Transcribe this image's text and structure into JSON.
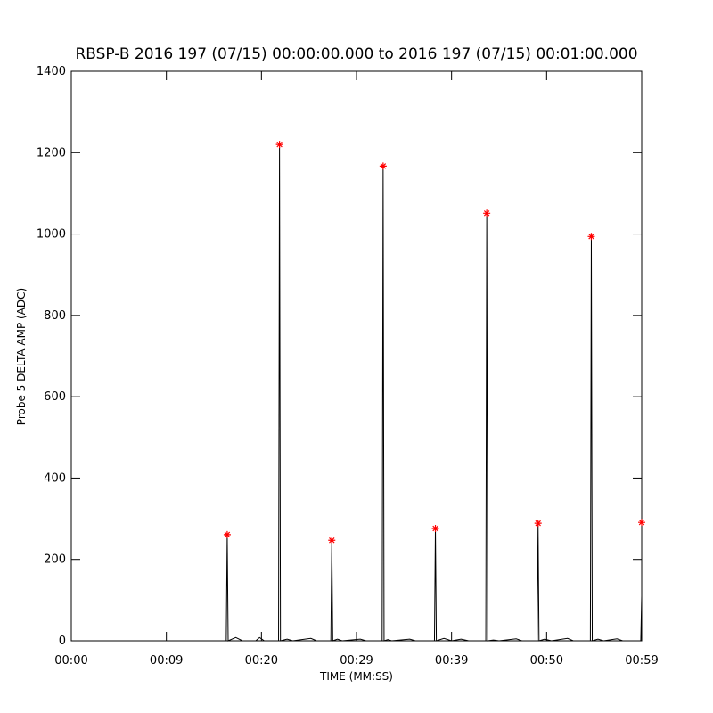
{
  "chart_data": {
    "type": "line",
    "title": "RBSP-B 2016 197 (07/15) 00:00:00.000 to 2016 197 (07/15) 00:01:00.000",
    "x_label": "TIME (MM:SS)",
    "y_label": "Probe 5 DELTA AMP (ADC)",
    "xlim": [
      0,
      60
    ],
    "ylim": [
      0,
      1400
    ],
    "xticks": [
      {
        "value": 0,
        "label": "00:00"
      },
      {
        "value": 10,
        "label": "00:09"
      },
      {
        "value": 20,
        "label": "00:20"
      },
      {
        "value": 30,
        "label": "00:29"
      },
      {
        "value": 40,
        "label": "00:39"
      },
      {
        "value": 50,
        "label": "00:50"
      },
      {
        "value": 60,
        "label": "00:59"
      }
    ],
    "yticks": [
      0,
      200,
      400,
      600,
      800,
      1000,
      1200,
      1400
    ],
    "grid": false,
    "series": [
      {
        "color": "#000000",
        "marker": "none",
        "x": [
          0,
          14.9,
          16.3,
          16.4,
          16.5,
          17.3,
          18.0,
          19.4,
          19.8,
          20.3,
          21.8,
          21.9,
          22.0,
          22.7,
          23.3,
          25.2,
          25.8,
          27.3,
          27.4,
          27.5,
          28.0,
          28.5,
          30.4,
          31.0,
          32.7,
          32.8,
          32.9,
          33.3,
          33.7,
          35.6,
          36.2,
          38.2,
          38.3,
          38.4,
          39.2,
          40.0,
          41.0,
          41.8,
          43.6,
          43.7,
          43.8,
          44.4,
          45.0,
          46.8,
          47.4,
          49.0,
          49.1,
          49.2,
          49.8,
          50.5,
          52.2,
          52.8,
          54.6,
          54.7,
          54.8,
          55.4,
          56.0,
          57.4,
          58.0,
          59.9,
          60
        ],
        "values": [
          0,
          0,
          0,
          261,
          0,
          8,
          0,
          0,
          8,
          0,
          0,
          1220,
          0,
          4,
          0,
          6,
          0,
          0,
          247,
          0,
          4,
          0,
          4,
          0,
          0,
          1167,
          0,
          3,
          0,
          4,
          0,
          0,
          276,
          0,
          6,
          0,
          4,
          0,
          0,
          1051,
          0,
          2,
          0,
          5,
          0,
          0,
          289,
          0,
          4,
          0,
          6,
          0,
          0,
          994,
          0,
          4,
          0,
          5,
          0,
          0,
          110
        ]
      },
      {
        "color": "#ff0000",
        "marker": "star",
        "line": false,
        "x": [
          16.4,
          21.9,
          27.4,
          32.8,
          38.3,
          43.7,
          49.1,
          54.7,
          60
        ],
        "values": [
          261,
          1220,
          247,
          1167,
          276,
          1051,
          289,
          994,
          291
        ]
      }
    ]
  }
}
